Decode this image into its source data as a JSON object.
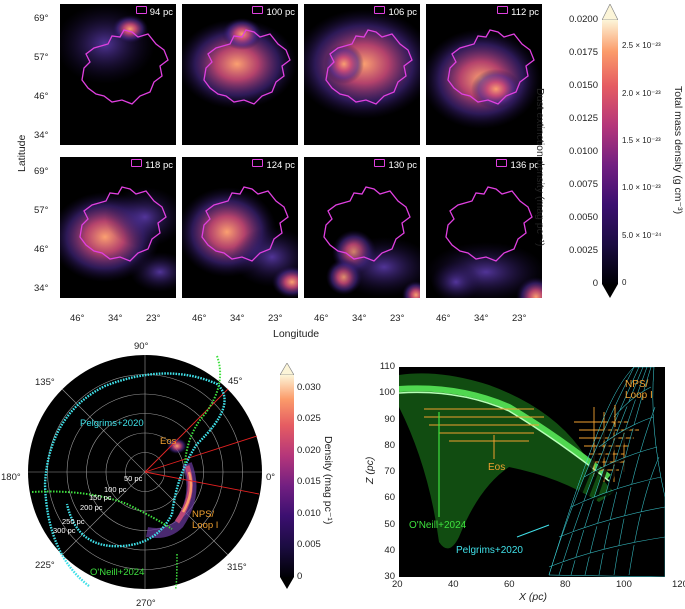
{
  "top": {
    "panel_labels": [
      "94 pc",
      "100 pc",
      "106 pc",
      "112 pc",
      "118 pc",
      "124 pc",
      "130 pc",
      "136 pc"
    ],
    "lat_ticks": [
      "69°",
      "57°",
      "46°",
      "34°"
    ],
    "lon_ticks": [
      "46°",
      "34°",
      "23°"
    ],
    "xlabel": "Longitude",
    "ylabel": "Latitude",
    "colorbar": {
      "left_ticks": [
        "0.0200",
        "0.0175",
        "0.0150",
        "0.0125",
        "0.0100",
        "0.0075",
        "0.0050",
        "0.0025",
        "0"
      ],
      "right_ticks": [
        "2.5 × 10⁻²³",
        "2.0 × 10⁻²³",
        "1.5 × 10⁻²³",
        "1.0 × 10⁻²³",
        "5.0 × 10⁻²⁴",
        "0"
      ],
      "left_label": "Dust extinction density (mag pc⁻¹)",
      "right_label": "Total mass density (g cm⁻³)"
    }
  },
  "polar": {
    "angle_labels": [
      "90°",
      "45°",
      "0°",
      "315°",
      "270°",
      "225°",
      "180°",
      "135°"
    ],
    "radius_labels": [
      "50 pc",
      "100 pc",
      "150 pc",
      "200 pc",
      "250 pc",
      "300 pc"
    ],
    "annotations": {
      "pelgrims": "Pelgrims+2020",
      "oneill": "O'Neill+2024",
      "eos": "Eos",
      "nps": "NPS/\nLoop I"
    },
    "colorbar": {
      "ticks": [
        "0.030",
        "0.025",
        "0.020",
        "0.015",
        "0.010",
        "0.005",
        "0"
      ],
      "label": "Density (mag pc⁻¹)"
    }
  },
  "xz": {
    "x_ticks": [
      "20",
      "40",
      "60",
      "80",
      "100",
      "120"
    ],
    "y_ticks": [
      "110",
      "100",
      "90",
      "80",
      "70",
      "60",
      "50",
      "40",
      "30"
    ],
    "xlabel": "X (pc)",
    "ylabel": "Z (pc)",
    "annotations": {
      "nps": "NPS/\nLoop I",
      "eos": "Eos",
      "oneill": "O'Neill+2024",
      "pelgrims": "Pelgrims+2020"
    }
  },
  "colors": {
    "contour": "#e040e0",
    "pelgrims": "#40e0e8",
    "oneill": "#3ee03e",
    "eos": "#f0a030"
  }
}
